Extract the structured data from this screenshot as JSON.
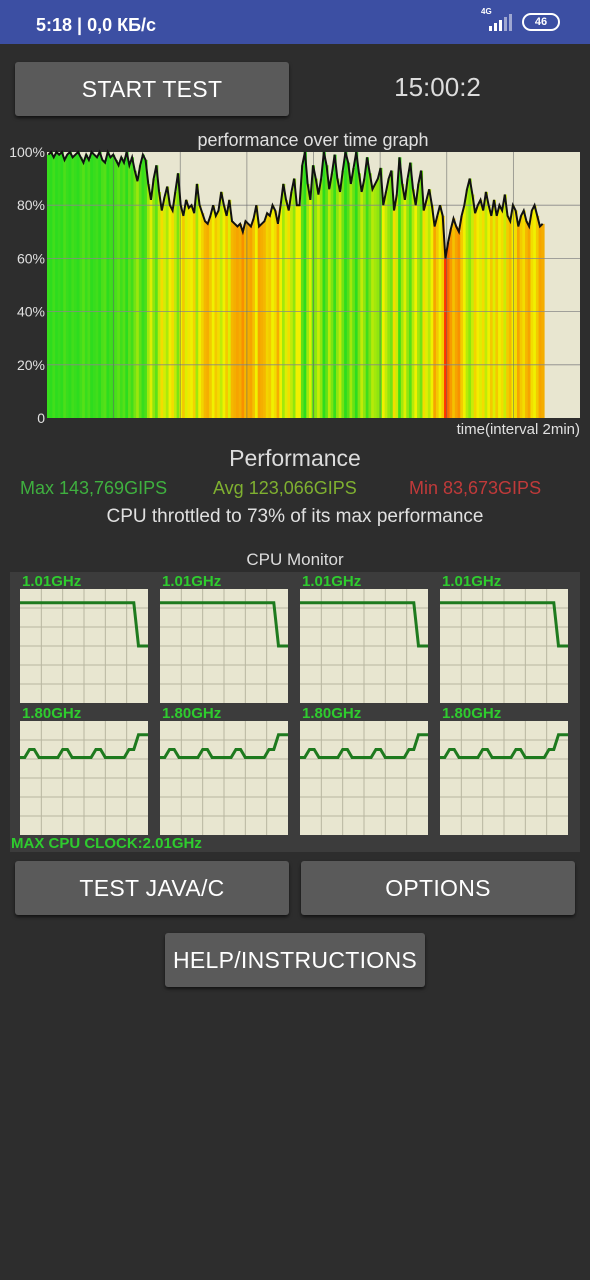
{
  "status_bar": {
    "time": "5:18 | 0,0 КБ/с",
    "network": "4G",
    "battery": "46"
  },
  "controls": {
    "start_test": "START TEST",
    "timer": "15:00:2",
    "test_java_c": "TEST JAVA/C",
    "options": "OPTIONS",
    "help": "HELP/INSTRUCTIONS"
  },
  "chart_data": {
    "type": "area",
    "title": "performance over time graph",
    "xlabel": "time(interval 2min)",
    "ylabel": "",
    "ylim": [
      0,
      100
    ],
    "yticks": [
      "0",
      "20%",
      "40%",
      "60%",
      "80%",
      "100%"
    ],
    "grid": true,
    "y_max": 100,
    "series": [
      {
        "values": [
          99,
          100,
          98,
          100,
          99,
          100,
          97,
          99,
          100,
          98,
          99,
          100,
          98,
          96,
          99,
          97,
          100,
          99,
          98,
          100,
          97,
          96,
          100,
          98,
          99,
          97,
          95,
          98,
          96,
          100,
          95,
          98,
          93,
          89,
          95,
          99,
          97,
          88,
          82,
          90,
          95,
          85,
          78,
          83,
          87,
          80,
          78,
          85,
          92,
          80,
          76,
          82,
          79,
          80,
          77,
          88,
          80,
          77,
          74,
          73,
          76,
          80,
          76,
          78,
          85,
          80,
          76,
          82,
          74,
          73,
          72,
          73,
          70,
          74,
          73,
          72,
          75,
          80,
          72,
          73,
          74,
          77,
          76,
          80,
          78,
          73,
          80,
          88,
          82,
          78,
          85,
          90,
          80,
          80,
          95,
          100,
          88,
          82,
          95,
          90,
          84,
          90,
          100,
          95,
          86,
          92,
          99,
          90,
          85,
          93,
          100,
          96,
          88,
          94,
          100,
          92,
          85,
          90,
          98,
          92,
          86,
          88,
          90,
          94,
          80,
          85,
          90,
          93,
          78,
          84,
          98,
          88,
          82,
          90,
          96,
          86,
          80,
          88,
          93,
          78,
          82,
          86,
          80,
          72,
          76,
          80,
          76,
          60,
          66,
          71,
          75,
          72,
          70,
          76,
          80,
          86,
          90,
          84,
          77,
          80,
          82,
          78,
          85,
          80,
          76,
          82,
          76,
          80,
          78,
          84,
          76,
          74,
          80,
          78,
          72,
          76,
          78,
          74,
          72,
          78,
          80,
          76,
          72,
          73
        ]
      }
    ],
    "annotations": [
      "100%",
      "80%",
      "60%",
      "40%",
      "20%",
      "0"
    ]
  },
  "performance": {
    "title": "Performance",
    "max": "Max 143,769GIPS",
    "avg": "Avg 123,066GIPS",
    "min": "Min 83,673GIPS",
    "throttle": "CPU throttled to 73% of its max performance"
  },
  "cpu_monitor": {
    "title": "CPU Monitor",
    "max_clock": "MAX CPU CLOCK:2.01GHz",
    "cores": [
      {
        "label": "1.01GHz",
        "values": [
          88,
          88,
          88,
          88,
          88,
          88,
          88,
          88,
          88,
          88,
          88,
          88,
          88,
          88,
          88,
          88,
          88,
          88,
          88,
          88,
          88,
          88,
          88,
          88,
          88,
          50,
          50,
          50
        ]
      },
      {
        "label": "1.01GHz",
        "values": [
          88,
          88,
          88,
          88,
          88,
          88,
          88,
          88,
          88,
          88,
          88,
          88,
          88,
          88,
          88,
          88,
          88,
          88,
          88,
          88,
          88,
          88,
          88,
          88,
          88,
          50,
          50,
          50
        ]
      },
      {
        "label": "1.01GHz",
        "values": [
          88,
          88,
          88,
          88,
          88,
          88,
          88,
          88,
          88,
          88,
          88,
          88,
          88,
          88,
          88,
          88,
          88,
          88,
          88,
          88,
          88,
          88,
          88,
          88,
          88,
          50,
          50,
          50
        ]
      },
      {
        "label": "1.01GHz",
        "values": [
          88,
          88,
          88,
          88,
          88,
          88,
          88,
          88,
          88,
          88,
          88,
          88,
          88,
          88,
          88,
          88,
          88,
          88,
          88,
          88,
          88,
          88,
          88,
          88,
          88,
          50,
          50,
          50
        ]
      },
      {
        "label": "1.80GHz",
        "values": [
          68,
          68,
          75,
          75,
          68,
          68,
          68,
          68,
          68,
          75,
          75,
          68,
          68,
          68,
          68,
          68,
          75,
          75,
          68,
          68,
          68,
          68,
          68,
          75,
          75,
          88,
          88,
          88
        ]
      },
      {
        "label": "1.80GHz",
        "values": [
          68,
          68,
          75,
          75,
          68,
          68,
          68,
          68,
          68,
          75,
          75,
          68,
          68,
          68,
          68,
          68,
          75,
          75,
          68,
          68,
          68,
          68,
          68,
          75,
          75,
          88,
          88,
          88
        ]
      },
      {
        "label": "1.80GHz",
        "values": [
          68,
          68,
          75,
          75,
          68,
          68,
          68,
          68,
          68,
          75,
          75,
          68,
          68,
          68,
          68,
          68,
          75,
          75,
          68,
          68,
          68,
          68,
          68,
          75,
          75,
          88,
          88,
          88
        ]
      },
      {
        "label": "1.80GHz",
        "values": [
          68,
          68,
          75,
          75,
          68,
          68,
          68,
          68,
          68,
          75,
          75,
          68,
          68,
          68,
          68,
          68,
          75,
          75,
          68,
          68,
          68,
          68,
          68,
          75,
          75,
          88,
          88,
          88
        ]
      }
    ]
  },
  "colors": {
    "status_bar": "#3c4fa3",
    "background": "#2d2d2d",
    "button": "#5a5a5a",
    "graph_bg": "#e8e6d0",
    "green": "#2ecc2e",
    "yellow": "#f0f000",
    "red": "#ff3000"
  }
}
